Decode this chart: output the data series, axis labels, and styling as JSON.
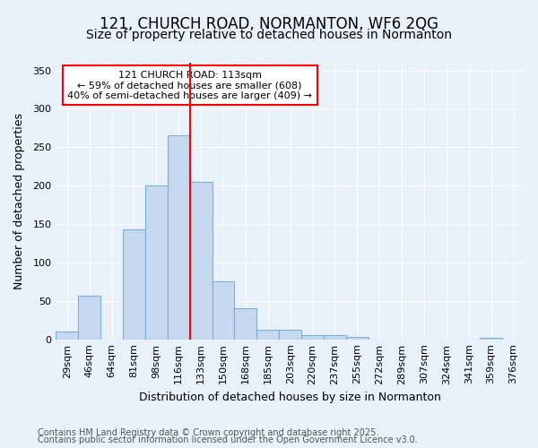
{
  "title_line1": "121, CHURCH ROAD, NORMANTON, WF6 2QG",
  "title_line2": "Size of property relative to detached houses in Normanton",
  "xlabel": "Distribution of detached houses by size in Normanton",
  "ylabel": "Number of detached properties",
  "categories": [
    "29sqm",
    "46sqm",
    "64sqm",
    "81sqm",
    "98sqm",
    "116sqm",
    "133sqm",
    "150sqm",
    "168sqm",
    "185sqm",
    "203sqm",
    "220sqm",
    "237sqm",
    "255sqm",
    "272sqm",
    "289sqm",
    "307sqm",
    "324sqm",
    "341sqm",
    "359sqm",
    "376sqm"
  ],
  "values": [
    10,
    57,
    0,
    143,
    200,
    265,
    205,
    75,
    40,
    13,
    13,
    5,
    5,
    3,
    0,
    0,
    0,
    0,
    0,
    2,
    0
  ],
  "bar_color": "#c5d8f0",
  "bar_edge_color": "#7bafd4",
  "red_line_x": 5.5,
  "ylim": [
    0,
    360
  ],
  "yticks": [
    0,
    50,
    100,
    150,
    200,
    250,
    300,
    350
  ],
  "annotation_text_line1": "121 CHURCH ROAD: 113sqm",
  "annotation_text_line2": "← 59% of detached houses are smaller (608)",
  "annotation_text_line3": "40% of semi-detached houses are larger (409) →",
  "footnote_line1": "Contains HM Land Registry data © Crown copyright and database right 2025.",
  "footnote_line2": "Contains public sector information licensed under the Open Government Licence v3.0.",
  "bg_color": "#e8f0f8",
  "grid_color": "#ffffff",
  "title_fontsize": 12,
  "subtitle_fontsize": 10,
  "axis_label_fontsize": 9,
  "tick_fontsize": 8,
  "annotation_fontsize": 8,
  "footnote_fontsize": 7
}
